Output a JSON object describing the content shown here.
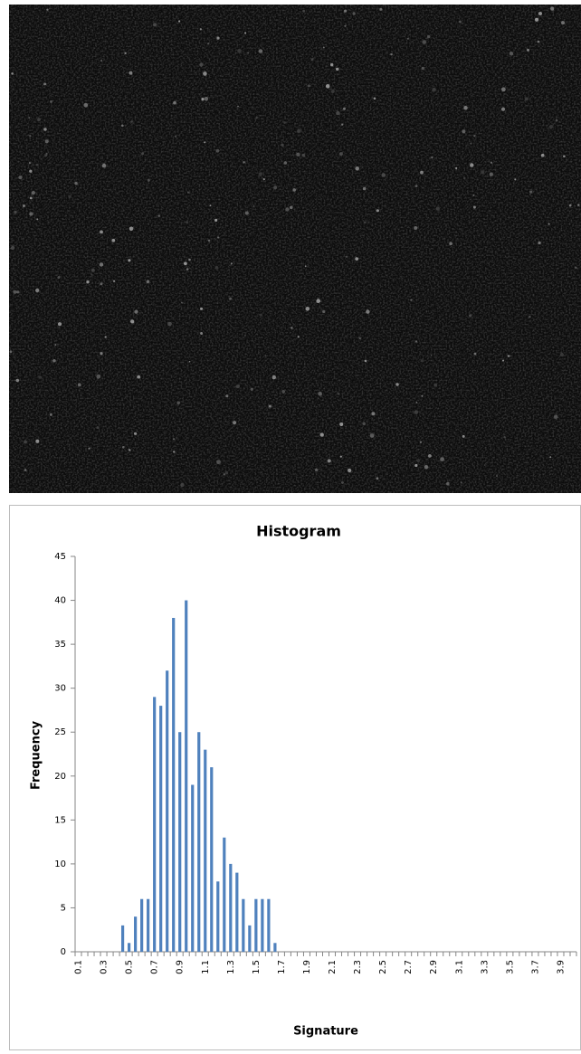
{
  "chart_data": {
    "type": "bar",
    "title": "Histogram",
    "x_label": "Signature",
    "y_label": "Frequency",
    "categories": [
      "0.1",
      null,
      null,
      null,
      "0.3",
      null,
      null,
      null,
      "0.5",
      null,
      null,
      null,
      "0.7",
      null,
      null,
      null,
      "0.9",
      null,
      null,
      null,
      "1.1",
      null,
      null,
      null,
      "1.3",
      null,
      null,
      null,
      "1.5",
      null,
      null,
      null,
      "1.7",
      null,
      null,
      null,
      "1.9",
      null,
      null,
      null,
      "2.1",
      null,
      null,
      null,
      "2.3",
      null,
      null,
      null,
      "2.5",
      null,
      null,
      null,
      "2.7",
      null,
      null,
      null,
      "2.9",
      null,
      null,
      null,
      "3.1",
      null,
      null,
      null,
      "3.3",
      null,
      null,
      null,
      "3.5",
      null,
      null,
      null,
      "3.7",
      null,
      null,
      null,
      "3.9",
      null,
      null
    ],
    "values": [
      0,
      0,
      0,
      0,
      0,
      0,
      0,
      3,
      1,
      4,
      6,
      6,
      29,
      28,
      32,
      38,
      25,
      40,
      19,
      25,
      23,
      21,
      8,
      13,
      10,
      9,
      6,
      3,
      6,
      6,
      6,
      1,
      0,
      0,
      0,
      0,
      0,
      0,
      0,
      0,
      0,
      0,
      0,
      0,
      0,
      0,
      0,
      0,
      0,
      0,
      0,
      0,
      0,
      0,
      0,
      0,
      0,
      0,
      0,
      0,
      0,
      0,
      0,
      0,
      0,
      0,
      0,
      0,
      0,
      0,
      0,
      0,
      0,
      0,
      0,
      0,
      0,
      0,
      0
    ],
    "color": "#4f81bd",
    "ylim": [
      0,
      45
    ],
    "yticks": [
      0,
      5,
      10,
      15,
      20,
      25,
      30,
      35,
      40,
      45
    ],
    "grid": false
  }
}
